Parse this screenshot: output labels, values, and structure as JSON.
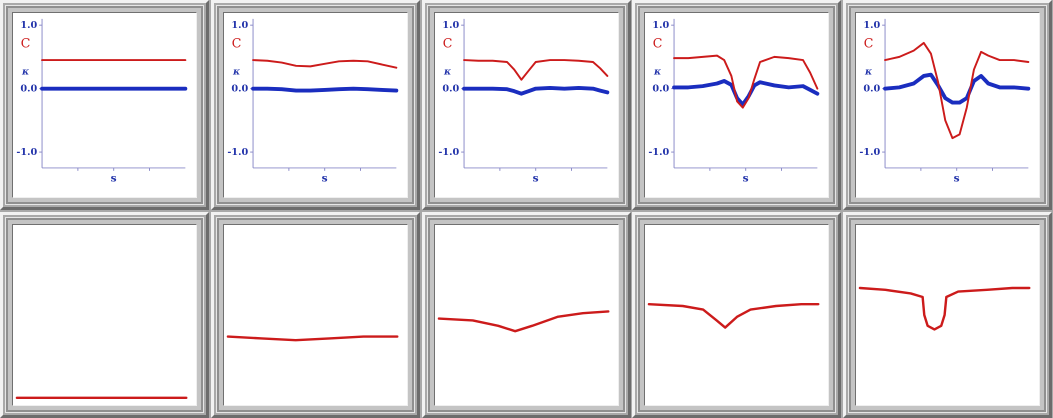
{
  "labels": {
    "one": "1.0",
    "zero": "0.0",
    "neg_one": "-1.0",
    "c_label": "C",
    "kappa_label": "κ",
    "s_label": "s"
  },
  "colors": {
    "c_series": "#cc1b1b",
    "kappa_series": "#1a2dbf",
    "axis": "#8a8ac8",
    "tick_text": "#2233aa"
  },
  "chart_data": [
    {
      "type": "line",
      "panel": "top-1",
      "xlabel": "s",
      "ylim": [
        -1.25,
        1.1
      ],
      "y_ticks": [
        "1.0",
        "0.0",
        "-1.0"
      ],
      "series": [
        {
          "name": "C",
          "x": [
            0,
            0.25,
            0.5,
            0.75,
            1
          ],
          "y": [
            0.45,
            0.45,
            0.45,
            0.45,
            0.45
          ]
        },
        {
          "name": "κ",
          "x": [
            0,
            0.25,
            0.5,
            0.75,
            1
          ],
          "y": [
            0.0,
            0.0,
            0.0,
            0.0,
            0.0
          ]
        }
      ]
    },
    {
      "type": "line",
      "panel": "top-2",
      "xlabel": "s",
      "ylim": [
        -1.25,
        1.1
      ],
      "y_ticks": [
        "1.0",
        "0.0",
        "-1.0"
      ],
      "series": [
        {
          "name": "C",
          "x": [
            0,
            0.1,
            0.2,
            0.3,
            0.4,
            0.5,
            0.6,
            0.7,
            0.8,
            0.9,
            1
          ],
          "y": [
            0.45,
            0.44,
            0.41,
            0.36,
            0.35,
            0.39,
            0.43,
            0.44,
            0.43,
            0.38,
            0.33
          ]
        },
        {
          "name": "κ",
          "x": [
            0,
            0.1,
            0.2,
            0.3,
            0.4,
            0.5,
            0.6,
            0.7,
            0.8,
            0.9,
            1
          ],
          "y": [
            0.0,
            0.0,
            -0.01,
            -0.03,
            -0.03,
            -0.02,
            -0.01,
            0.0,
            -0.01,
            -0.02,
            -0.03
          ]
        }
      ]
    },
    {
      "type": "line",
      "panel": "top-3",
      "xlabel": "s",
      "ylim": [
        -1.25,
        1.1
      ],
      "y_ticks": [
        "1.0",
        "0.0",
        "-1.0"
      ],
      "series": [
        {
          "name": "C",
          "x": [
            0,
            0.1,
            0.2,
            0.3,
            0.35,
            0.4,
            0.45,
            0.5,
            0.6,
            0.7,
            0.8,
            0.9,
            0.95,
            1
          ],
          "y": [
            0.45,
            0.44,
            0.44,
            0.42,
            0.3,
            0.14,
            0.28,
            0.42,
            0.45,
            0.45,
            0.44,
            0.42,
            0.32,
            0.2
          ]
        },
        {
          "name": "κ",
          "x": [
            0,
            0.1,
            0.2,
            0.3,
            0.35,
            0.4,
            0.45,
            0.5,
            0.6,
            0.7,
            0.8,
            0.9,
            0.95,
            1
          ],
          "y": [
            0.0,
            0.0,
            0.0,
            -0.01,
            -0.04,
            -0.08,
            -0.04,
            0.0,
            0.01,
            0.0,
            0.01,
            0.0,
            -0.03,
            -0.06
          ]
        }
      ]
    },
    {
      "type": "line",
      "panel": "top-4",
      "xlabel": "s",
      "ylim": [
        -1.25,
        1.1
      ],
      "y_ticks": [
        "1.0",
        "0.0",
        "-1.0"
      ],
      "series": [
        {
          "name": "C",
          "x": [
            0,
            0.1,
            0.2,
            0.3,
            0.35,
            0.4,
            0.44,
            0.48,
            0.52,
            0.56,
            0.6,
            0.7,
            0.8,
            0.9,
            0.95,
            1
          ],
          "y": [
            0.48,
            0.48,
            0.5,
            0.52,
            0.45,
            0.2,
            -0.2,
            -0.3,
            -0.15,
            0.15,
            0.42,
            0.5,
            0.48,
            0.45,
            0.25,
            0.0
          ]
        },
        {
          "name": "κ",
          "x": [
            0,
            0.1,
            0.2,
            0.3,
            0.35,
            0.4,
            0.44,
            0.48,
            0.52,
            0.56,
            0.6,
            0.7,
            0.8,
            0.9,
            0.95,
            1
          ],
          "y": [
            0.02,
            0.02,
            0.04,
            0.08,
            0.12,
            0.06,
            -0.15,
            -0.25,
            -0.12,
            0.05,
            0.1,
            0.05,
            0.02,
            0.04,
            -0.02,
            -0.08
          ]
        }
      ]
    },
    {
      "type": "line",
      "panel": "top-5",
      "xlabel": "s",
      "ylim": [
        -1.25,
        1.1
      ],
      "y_ticks": [
        "1.0",
        "0.0",
        "-1.0"
      ],
      "series": [
        {
          "name": "C",
          "x": [
            0,
            0.1,
            0.2,
            0.27,
            0.32,
            0.37,
            0.42,
            0.47,
            0.52,
            0.57,
            0.62,
            0.67,
            0.72,
            0.8,
            0.9,
            1
          ],
          "y": [
            0.45,
            0.5,
            0.6,
            0.72,
            0.55,
            0.1,
            -0.5,
            -0.78,
            -0.72,
            -0.3,
            0.3,
            0.58,
            0.52,
            0.45,
            0.45,
            0.42
          ]
        },
        {
          "name": "κ",
          "x": [
            0,
            0.1,
            0.2,
            0.27,
            0.32,
            0.37,
            0.42,
            0.47,
            0.52,
            0.57,
            0.62,
            0.67,
            0.72,
            0.8,
            0.9,
            1
          ],
          "y": [
            0.0,
            0.02,
            0.08,
            0.2,
            0.22,
            0.05,
            -0.15,
            -0.22,
            -0.22,
            -0.15,
            0.12,
            0.2,
            0.08,
            0.02,
            0.02,
            0.0
          ]
        }
      ]
    },
    {
      "type": "line",
      "panel": "bottom-1",
      "series": [
        {
          "x": [
            0,
            0.5,
            1
          ],
          "y": [
            0.04,
            0.04,
            0.04
          ]
        }
      ]
    },
    {
      "type": "line",
      "panel": "bottom-2",
      "series": [
        {
          "x": [
            0,
            0.2,
            0.4,
            0.6,
            0.8,
            1
          ],
          "y": [
            0.38,
            0.37,
            0.36,
            0.37,
            0.38,
            0.38
          ]
        }
      ]
    },
    {
      "type": "line",
      "panel": "bottom-3",
      "series": [
        {
          "x": [
            0,
            0.2,
            0.35,
            0.45,
            0.55,
            0.7,
            0.85,
            1
          ],
          "y": [
            0.48,
            0.47,
            0.44,
            0.41,
            0.44,
            0.49,
            0.51,
            0.52
          ]
        }
      ]
    },
    {
      "type": "line",
      "panel": "bottom-4",
      "series": [
        {
          "x": [
            0,
            0.2,
            0.32,
            0.4,
            0.45,
            0.52,
            0.6,
            0.75,
            0.9,
            1
          ],
          "y": [
            0.56,
            0.55,
            0.53,
            0.47,
            0.43,
            0.49,
            0.53,
            0.55,
            0.56,
            0.56
          ]
        }
      ]
    },
    {
      "type": "line",
      "panel": "bottom-5",
      "series": [
        {
          "x": [
            0,
            0.15,
            0.3,
            0.37,
            0.38,
            0.4,
            0.44,
            0.48,
            0.5,
            0.51,
            0.58,
            0.75,
            0.9,
            1
          ],
          "y": [
            0.65,
            0.64,
            0.62,
            0.6,
            0.5,
            0.44,
            0.42,
            0.44,
            0.5,
            0.6,
            0.63,
            0.64,
            0.65,
            0.65
          ]
        }
      ]
    }
  ]
}
